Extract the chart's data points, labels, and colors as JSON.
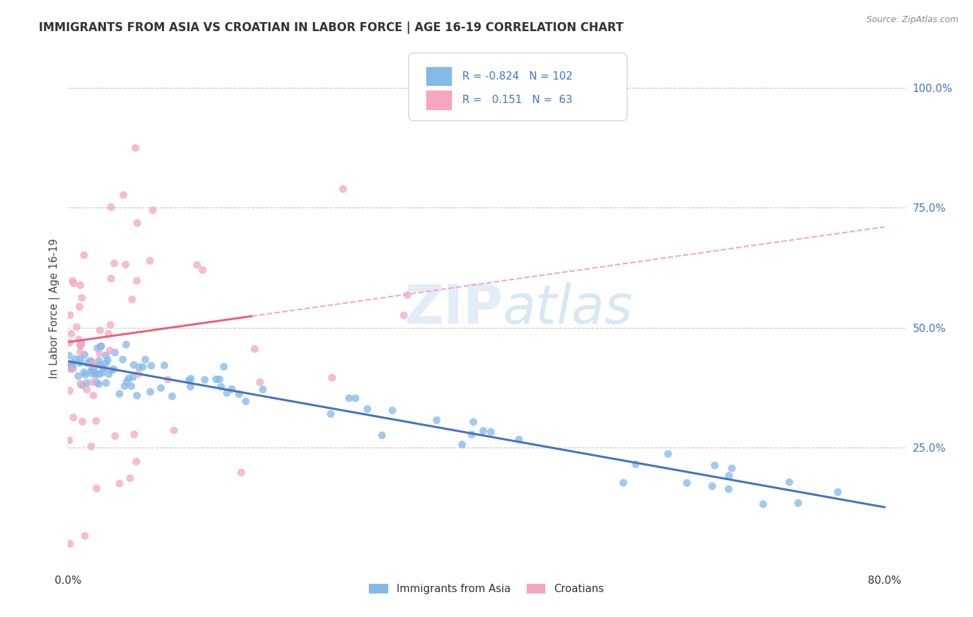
{
  "title": "IMMIGRANTS FROM ASIA VS CROATIAN IN LABOR FORCE | AGE 16-19 CORRELATION CHART",
  "source": "Source: ZipAtlas.com",
  "ylabel": "In Labor Force | Age 16-19",
  "xlim": [
    0.0,
    0.82
  ],
  "ylim": [
    0.0,
    1.08
  ],
  "yticks_right": [
    0.25,
    0.5,
    0.75,
    1.0
  ],
  "ytick_labels_right": [
    "25.0%",
    "50.0%",
    "75.0%",
    "100.0%"
  ],
  "blue_scatter_color": "#85b9e8",
  "pink_scatter_color": "#f4a7bf",
  "blue_line_color": "#4472c4",
  "pink_line_color": "#e8607a",
  "pink_dash_color": "#f0a8c0",
  "r_blue": "-0.824",
  "n_blue": "102",
  "r_pink": "0.151",
  "n_pink": "63",
  "legend_label_blue": "Immigrants from Asia",
  "legend_label_pink": "Croatians",
  "watermark_zip": "ZIP",
  "watermark_atlas": "atlas",
  "background_color": "#ffffff",
  "grid_color": "#cccccc",
  "title_color": "#333333",
  "source_color": "#888888",
  "axis_label_color": "#444444",
  "tick_color": "#4472c4",
  "legend_text_color": "#4472c4",
  "legend_label_color": "#333333"
}
